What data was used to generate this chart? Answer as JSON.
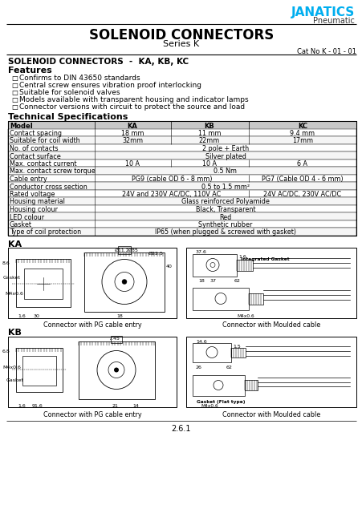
{
  "title": "SOLENOID CONNECTORS",
  "subtitle": "Series K",
  "cat_no": "Cat No K - 01 - 01",
  "brand": "JANATICS",
  "brand_sub": "Pneumatic",
  "brand_color": "#00AEEF",
  "section_title": "SOLENOID CONNECTORS  -  KA, KB, KC",
  "features_title": "Features",
  "features": [
    "Confirms to DIN 43650 standards",
    "Central screw ensures vibration proof interlocking",
    "Suitable for solenoid valves",
    "Models available with transparent housing and indicator lamps",
    "Connector versions with circuit to protect the source and load"
  ],
  "tech_title": "Technical Specifications",
  "table_headers": [
    "Model",
    "KA",
    "KB",
    "KC"
  ],
  "table_rows": [
    [
      "Contact spacing",
      "18 mm",
      "11 mm",
      "9.4 mm"
    ],
    [
      "Suitable for coil width",
      "32mm",
      "22mm",
      "17mm"
    ],
    [
      "No. of contacts",
      "2 pole + Earth",
      "",
      ""
    ],
    [
      "Contact surface",
      "Silver plated",
      "",
      ""
    ],
    [
      "Max. contact current",
      "10 A",
      "10 A",
      "6 A"
    ],
    [
      "Max. contact screw torque",
      "0.5 Nm",
      "",
      ""
    ],
    [
      "Cable entry",
      "PG9 (cable OD 6 - 8 mm)",
      "",
      "PG7 (Cable OD 4 - 6 mm)"
    ],
    [
      "Conductor cross section",
      "0.5 to 1.5 mm²",
      "",
      ""
    ],
    [
      "Rated voltage",
      "24V and 230V AC/DC, 110V AC",
      "",
      "24V AC/DC, 230V AC/DC"
    ],
    [
      "Housing material",
      "Glass reinforced Polyamide",
      "",
      ""
    ],
    [
      "Housing colour",
      "Black, Transparent",
      "",
      ""
    ],
    [
      "LED colour",
      "Red",
      "",
      ""
    ],
    [
      "Gasket",
      "Synthetic rubber",
      "",
      ""
    ],
    [
      "Type of coil protection",
      "IP65 (when plugged & screwed with gasket)",
      "",
      ""
    ]
  ],
  "ka_label": "KA",
  "kb_label": "KB",
  "caption_pg": "Connector with PG cable entry",
  "caption_moulded": "Connector with Moulded cable",
  "page_num": "2.6.1",
  "bg_color": "#FFFFFF",
  "table_header_bg": "#CCCCCC",
  "brand_color_hex": "#00AEEF"
}
